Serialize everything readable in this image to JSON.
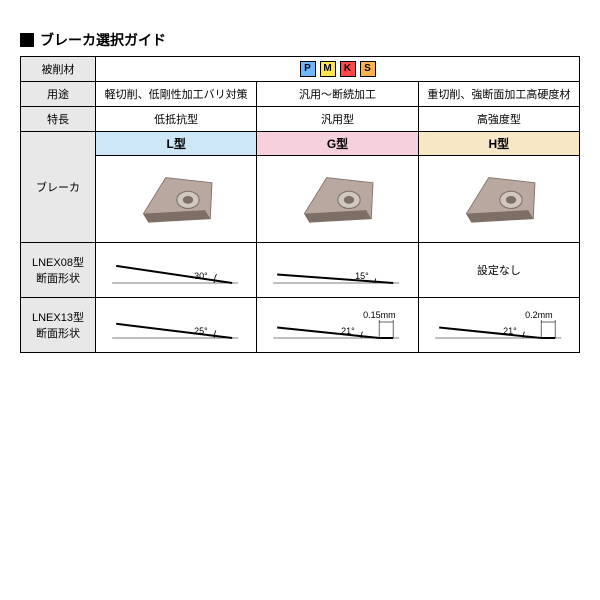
{
  "title": "ブレーカ選択ガイド",
  "rows": {
    "material": "被削材",
    "usage": "用途",
    "feature": "特長",
    "breaker": "ブレーカ",
    "lnex08": "LNEX08型\n断面形状",
    "lnex13": "LNEX13型\n断面形状"
  },
  "material_badges": [
    {
      "letter": "P",
      "bg": "#6fb7ff"
    },
    {
      "letter": "M",
      "bg": "#ffe54a"
    },
    {
      "letter": "K",
      "bg": "#ff4a4a"
    },
    {
      "letter": "S",
      "bg": "#ffb14a"
    }
  ],
  "columns": [
    {
      "usage": "軽切削、低剛性加工バリ対策",
      "feature": "低抵抗型",
      "type_label": "L型",
      "type_bg": "#cde7f7",
      "lnex08_angle": "30°",
      "lnex08_tip_deg": 30,
      "lnex13_angle": "25°",
      "lnex13_tip_deg": 25,
      "lnex13_land": null
    },
    {
      "usage": "汎用～断続加工",
      "feature": "汎用型",
      "type_label": "G型",
      "type_bg": "#f7d0de",
      "lnex08_angle": "15°",
      "lnex08_tip_deg": 15,
      "lnex13_angle": "21°",
      "lnex13_tip_deg": 21,
      "lnex13_land": "0.15mm"
    },
    {
      "usage": "重切削、強断面加工高硬度材",
      "feature": "高強度型",
      "type_label": "H型",
      "type_bg": "#f7e7c4",
      "lnex08_angle": null,
      "lnex08_none": "設定なし",
      "lnex13_angle": "21°",
      "lnex13_tip_deg": 21,
      "lnex13_land": "0.2mm"
    }
  ],
  "colors": {
    "insert_body": "#b9a8a0",
    "insert_dark": "#7d6e66",
    "insert_hole": "#cfc7c0"
  }
}
